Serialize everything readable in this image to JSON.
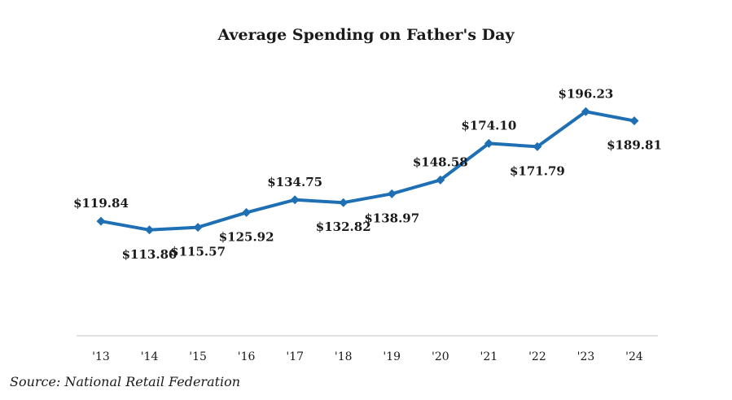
{
  "chart_data": {
    "type": "line",
    "title": "Average Spending on Father's Day",
    "source": "Source: National Retail Federation",
    "categories": [
      "'13",
      "'14",
      "'15",
      "'16",
      "'17",
      "'18",
      "'19",
      "'20",
      "'21",
      "'22",
      "'23",
      "'24"
    ],
    "series": [
      {
        "name": "Average Spending",
        "values": [
          119.84,
          113.8,
          115.57,
          125.92,
          134.75,
          132.82,
          138.97,
          148.58,
          174.1,
          171.79,
          196.23,
          189.81
        ],
        "data_labels": [
          "$119.84",
          "$113.80",
          "$115.57",
          "$125.92",
          "$134.75",
          "$132.82",
          "$138.97",
          "$148.58",
          "$174.10",
          "$171.79",
          "$196.23",
          "$189.81"
        ],
        "label_positions": [
          "above",
          "below",
          "below",
          "below",
          "above",
          "below",
          "below",
          "above",
          "above",
          "below",
          "above",
          "below"
        ]
      }
    ],
    "xlabel": "",
    "ylabel": "",
    "ylim": [
      40,
      210
    ],
    "grid": false,
    "legend": "none",
    "colors": {
      "line": "#1f6fb4",
      "axis": "#d0d0d0",
      "text": "#1a1a1a"
    }
  }
}
